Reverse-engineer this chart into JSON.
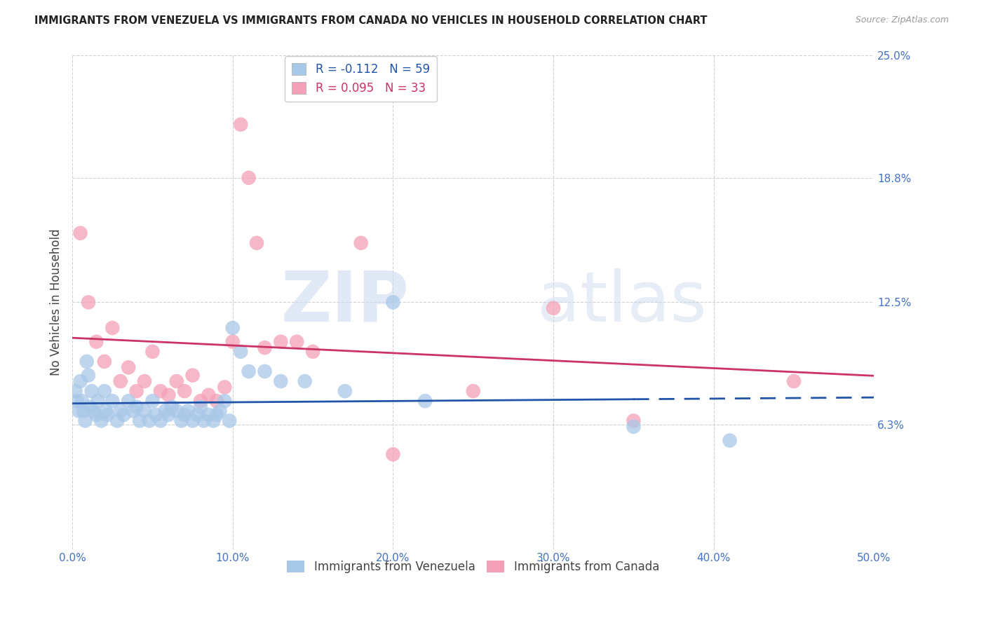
{
  "title": "IMMIGRANTS FROM VENEZUELA VS IMMIGRANTS FROM CANADA NO VEHICLES IN HOUSEHOLD CORRELATION CHART",
  "source": "Source: ZipAtlas.com",
  "ylabel": "No Vehicles in Household",
  "xlim": [
    0.0,
    50.0
  ],
  "ylim": [
    0.0,
    25.0
  ],
  "xticks": [
    0.0,
    10.0,
    20.0,
    30.0,
    40.0,
    50.0
  ],
  "yticks": [
    6.3,
    12.5,
    18.8,
    25.0
  ],
  "ytick_labels": [
    "6.3%",
    "12.5%",
    "18.8%",
    "25.0%"
  ],
  "xtick_labels": [
    "0.0%",
    "10.0%",
    "20.0%",
    "30.0%",
    "40.0%",
    "50.0%"
  ],
  "watermark_zip": "ZIP",
  "watermark_atlas": "atlas",
  "blue_color": "#a8c8e8",
  "pink_color": "#f4a0b8",
  "blue_line_color": "#2255aa",
  "pink_line_color": "#cc3366",
  "axis_label_color": "#4472c4",
  "title_color": "#222222",
  "R_blue": -0.112,
  "N_blue": 59,
  "R_pink": 0.095,
  "N_pink": 33,
  "blue_line_solid_end": 35.0,
  "blue_points": [
    [
      0.2,
      8.0
    ],
    [
      0.3,
      7.5
    ],
    [
      0.4,
      7.0
    ],
    [
      0.5,
      8.5
    ],
    [
      0.6,
      7.5
    ],
    [
      0.7,
      7.0
    ],
    [
      0.8,
      6.5
    ],
    [
      0.9,
      9.5
    ],
    [
      1.0,
      8.8
    ],
    [
      1.1,
      7.2
    ],
    [
      1.2,
      8.0
    ],
    [
      1.3,
      7.0
    ],
    [
      1.5,
      6.8
    ],
    [
      1.6,
      7.5
    ],
    [
      1.8,
      6.5
    ],
    [
      2.0,
      8.0
    ],
    [
      2.1,
      7.0
    ],
    [
      2.2,
      6.8
    ],
    [
      2.5,
      7.5
    ],
    [
      2.8,
      6.5
    ],
    [
      3.0,
      7.0
    ],
    [
      3.2,
      6.8
    ],
    [
      3.5,
      7.5
    ],
    [
      3.8,
      7.0
    ],
    [
      4.0,
      7.2
    ],
    [
      4.2,
      6.5
    ],
    [
      4.5,
      7.0
    ],
    [
      4.8,
      6.5
    ],
    [
      5.0,
      7.5
    ],
    [
      5.2,
      6.8
    ],
    [
      5.5,
      6.5
    ],
    [
      5.8,
      7.0
    ],
    [
      6.0,
      6.8
    ],
    [
      6.2,
      7.2
    ],
    [
      6.5,
      7.0
    ],
    [
      6.8,
      6.5
    ],
    [
      7.0,
      6.8
    ],
    [
      7.2,
      7.0
    ],
    [
      7.5,
      6.5
    ],
    [
      7.8,
      6.8
    ],
    [
      8.0,
      7.2
    ],
    [
      8.2,
      6.5
    ],
    [
      8.5,
      6.8
    ],
    [
      8.8,
      6.5
    ],
    [
      9.0,
      6.8
    ],
    [
      9.2,
      7.0
    ],
    [
      9.5,
      7.5
    ],
    [
      9.8,
      6.5
    ],
    [
      10.0,
      11.2
    ],
    [
      10.5,
      10.0
    ],
    [
      11.0,
      9.0
    ],
    [
      12.0,
      9.0
    ],
    [
      13.0,
      8.5
    ],
    [
      14.5,
      8.5
    ],
    [
      17.0,
      8.0
    ],
    [
      20.0,
      12.5
    ],
    [
      22.0,
      7.5
    ],
    [
      35.0,
      6.2
    ],
    [
      41.0,
      5.5
    ]
  ],
  "pink_points": [
    [
      0.5,
      16.0
    ],
    [
      1.0,
      12.5
    ],
    [
      1.5,
      10.5
    ],
    [
      2.0,
      9.5
    ],
    [
      2.5,
      11.2
    ],
    [
      3.0,
      8.5
    ],
    [
      3.5,
      9.2
    ],
    [
      4.0,
      8.0
    ],
    [
      4.5,
      8.5
    ],
    [
      5.0,
      10.0
    ],
    [
      5.5,
      8.0
    ],
    [
      6.0,
      7.8
    ],
    [
      6.5,
      8.5
    ],
    [
      7.0,
      8.0
    ],
    [
      7.5,
      8.8
    ],
    [
      8.0,
      7.5
    ],
    [
      8.5,
      7.8
    ],
    [
      9.0,
      7.5
    ],
    [
      9.5,
      8.2
    ],
    [
      10.0,
      10.5
    ],
    [
      10.5,
      21.5
    ],
    [
      11.0,
      18.8
    ],
    [
      11.5,
      15.5
    ],
    [
      12.0,
      10.2
    ],
    [
      13.0,
      10.5
    ],
    [
      14.0,
      10.5
    ],
    [
      15.0,
      10.0
    ],
    [
      18.0,
      15.5
    ],
    [
      20.0,
      4.8
    ],
    [
      25.0,
      8.0
    ],
    [
      30.0,
      12.2
    ],
    [
      35.0,
      6.5
    ],
    [
      45.0,
      8.5
    ]
  ]
}
